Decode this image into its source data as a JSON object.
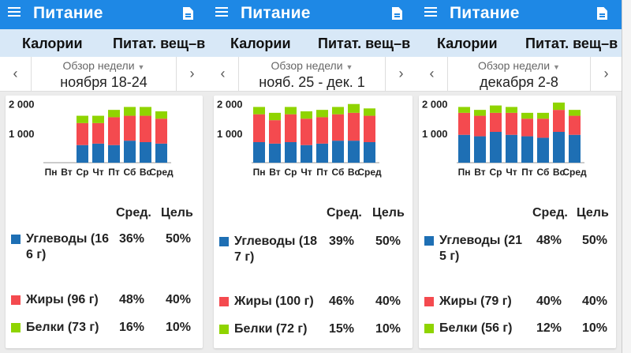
{
  "app_title": "Питание",
  "tabs": [
    "Калории",
    "Питат. вещ–в"
  ],
  "week_selector_label": "Обзор недели",
  "colors": {
    "app_bar": "#1e88e5",
    "tab_bar": "#d8e8f7",
    "carbs": "#1e6fb4",
    "fat": "#f44a4f",
    "protein": "#8fd400"
  },
  "icons": [
    "menu-icon",
    "document-icon",
    "chevron-left-icon",
    "chevron-right-icon",
    "dropdown-caret-icon"
  ],
  "table_headers": {
    "avg": "Сред.",
    "goal": "Цель"
  },
  "screens": [
    {
      "week_range": "ноября 18-24",
      "rows": [
        {
          "label": "Углеводы (16 6 г)",
          "avg": "36%",
          "goal": "50%"
        },
        {
          "label": "Жиры (96 г)",
          "avg": "48%",
          "goal": "40%"
        },
        {
          "label": "Белки (73 г)",
          "avg": "16%",
          "goal": "10%"
        }
      ]
    },
    {
      "week_range": "нояб. 25 - дек. 1",
      "rows": [
        {
          "label": "Углеводы (18 7 г)",
          "avg": "39%",
          "goal": "50%"
        },
        {
          "label": "Жиры (100 г)",
          "avg": "46%",
          "goal": "40%"
        },
        {
          "label": "Белки (72 г)",
          "avg": "15%",
          "goal": "10%"
        }
      ]
    },
    {
      "week_range": "декабря 2-8",
      "rows": [
        {
          "label": "Углеводы (21 5 г)",
          "avg": "48%",
          "goal": "50%"
        },
        {
          "label": "Жиры (79 г)",
          "avg": "40%",
          "goal": "40%"
        },
        {
          "label": "Белки (56 г)",
          "avg": "12%",
          "goal": "10%"
        }
      ]
    }
  ],
  "chart_data": [
    {
      "type": "bar",
      "stacked": true,
      "categories": [
        "Пн",
        "Вт",
        "Ср",
        "Чт",
        "Пт",
        "Сб",
        "Вс",
        "Сред"
      ],
      "y_ticks": [
        "1 000",
        "2 000"
      ],
      "ylim": [
        0,
        2100
      ],
      "grid": false,
      "series": [
        {
          "key": "carbs",
          "color": "#1e6fb4",
          "values": [
            0,
            0,
            600,
            650,
            600,
            750,
            700,
            650
          ]
        },
        {
          "key": "fat",
          "color": "#f44a4f",
          "values": [
            0,
            0,
            750,
            700,
            950,
            850,
            900,
            850
          ]
        },
        {
          "key": "protein",
          "color": "#8fd400",
          "values": [
            0,
            0,
            250,
            250,
            250,
            300,
            300,
            250
          ]
        }
      ]
    },
    {
      "type": "bar",
      "stacked": true,
      "categories": [
        "Пн",
        "Вт",
        "Ср",
        "Чт",
        "Пт",
        "Сб",
        "Вс",
        "Сред"
      ],
      "y_ticks": [
        "1 000",
        "2 000"
      ],
      "ylim": [
        0,
        2100
      ],
      "grid": false,
      "series": [
        {
          "key": "carbs",
          "color": "#1e6fb4",
          "values": [
            700,
            650,
            700,
            600,
            650,
            750,
            750,
            700
          ]
        },
        {
          "key": "fat",
          "color": "#f44a4f",
          "values": [
            950,
            800,
            950,
            900,
            900,
            900,
            950,
            900
          ]
        },
        {
          "key": "protein",
          "color": "#8fd400",
          "values": [
            250,
            250,
            250,
            250,
            250,
            250,
            300,
            250
          ]
        }
      ]
    },
    {
      "type": "bar",
      "stacked": true,
      "categories": [
        "Пн",
        "Вт",
        "Ср",
        "Чт",
        "Пт",
        "Сб",
        "Вс",
        "Сред"
      ],
      "y_ticks": [
        "1 000",
        "2 000"
      ],
      "ylim": [
        0,
        2100
      ],
      "grid": false,
      "series": [
        {
          "key": "carbs",
          "color": "#1e6fb4",
          "values": [
            950,
            900,
            1050,
            950,
            900,
            850,
            1050,
            950
          ]
        },
        {
          "key": "fat",
          "color": "#f44a4f",
          "values": [
            750,
            700,
            650,
            750,
            600,
            650,
            750,
            650
          ]
        },
        {
          "key": "protein",
          "color": "#8fd400",
          "values": [
            200,
            200,
            250,
            200,
            200,
            200,
            250,
            200
          ]
        }
      ]
    }
  ]
}
